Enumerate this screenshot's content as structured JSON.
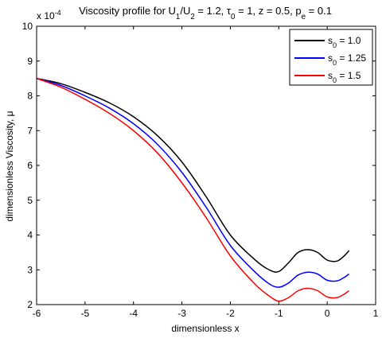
{
  "chart_data": {
    "type": "line",
    "title": {
      "parts": [
        {
          "t": "Viscosity profile for U"
        },
        {
          "t": "1",
          "sub": true
        },
        {
          "t": "/U"
        },
        {
          "t": "2",
          "sub": true
        },
        {
          "t": " = 1.2, τ"
        },
        {
          "t": "0",
          "sub": true
        },
        {
          "t": " = 1, z = 0.5, p"
        },
        {
          "t": "e",
          "sub": true
        },
        {
          "t": " = 0.1"
        }
      ]
    },
    "xlabel": "dimensionless x",
    "ylabel": "dimensionless Viscosity, μ",
    "y_multiplier": "x 10",
    "y_multiplier_exp": "-4",
    "xlim": [
      -6,
      1
    ],
    "ylim": [
      2,
      10
    ],
    "xticks": [
      -6,
      -5,
      -4,
      -3,
      -2,
      -1,
      0,
      1
    ],
    "yticks": [
      2,
      3,
      4,
      5,
      6,
      7,
      8,
      9,
      10
    ],
    "legend_position": "top-right",
    "series": [
      {
        "name": "s0 = 1.0",
        "name_parts": [
          {
            "t": "s"
          },
          {
            "t": "0",
            "sub": true
          },
          {
            "t": " = 1.0"
          }
        ],
        "color": "#000000",
        "points": [
          [
            -6,
            8.5
          ],
          [
            -5.5,
            8.35
          ],
          [
            -5,
            8.1
          ],
          [
            -4.5,
            7.8
          ],
          [
            -4,
            7.4
          ],
          [
            -3.5,
            6.85
          ],
          [
            -3,
            6.1
          ],
          [
            -2.5,
            5.1
          ],
          [
            -2,
            4.0
          ],
          [
            -1.5,
            3.3
          ],
          [
            -1.2,
            3.0
          ],
          [
            -1.0,
            2.95
          ],
          [
            -0.8,
            3.2
          ],
          [
            -0.6,
            3.5
          ],
          [
            -0.4,
            3.58
          ],
          [
            -0.2,
            3.5
          ],
          [
            0,
            3.28
          ],
          [
            0.2,
            3.25
          ],
          [
            0.35,
            3.4
          ],
          [
            0.45,
            3.55
          ]
        ]
      },
      {
        "name": "s0 = 1.25",
        "name_parts": [
          {
            "t": "s"
          },
          {
            "t": "0",
            "sub": true
          },
          {
            "t": " = 1.25"
          }
        ],
        "color": "#0000ff",
        "points": [
          [
            -6,
            8.5
          ],
          [
            -5.5,
            8.3
          ],
          [
            -5,
            8.0
          ],
          [
            -4.5,
            7.65
          ],
          [
            -4,
            7.2
          ],
          [
            -3.5,
            6.6
          ],
          [
            -3,
            5.8
          ],
          [
            -2.5,
            4.8
          ],
          [
            -2,
            3.7
          ],
          [
            -1.5,
            2.95
          ],
          [
            -1.2,
            2.6
          ],
          [
            -1.0,
            2.5
          ],
          [
            -0.8,
            2.62
          ],
          [
            -0.6,
            2.85
          ],
          [
            -0.4,
            2.93
          ],
          [
            -0.2,
            2.88
          ],
          [
            0,
            2.7
          ],
          [
            0.2,
            2.68
          ],
          [
            0.35,
            2.78
          ],
          [
            0.45,
            2.88
          ]
        ]
      },
      {
        "name": "s0 = 1.5",
        "name_parts": [
          {
            "t": "s"
          },
          {
            "t": "0",
            "sub": true
          },
          {
            "t": " = 1.5"
          }
        ],
        "color": "#ff0000",
        "points": [
          [
            -6,
            8.5
          ],
          [
            -5.5,
            8.25
          ],
          [
            -5,
            7.9
          ],
          [
            -4.5,
            7.5
          ],
          [
            -4,
            7.0
          ],
          [
            -3.5,
            6.35
          ],
          [
            -3,
            5.5
          ],
          [
            -2.5,
            4.5
          ],
          [
            -2,
            3.4
          ],
          [
            -1.5,
            2.6
          ],
          [
            -1.2,
            2.25
          ],
          [
            -1.0,
            2.1
          ],
          [
            -0.8,
            2.2
          ],
          [
            -0.6,
            2.4
          ],
          [
            -0.4,
            2.47
          ],
          [
            -0.2,
            2.4
          ],
          [
            0,
            2.22
          ],
          [
            0.2,
            2.2
          ],
          [
            0.35,
            2.3
          ],
          [
            0.45,
            2.4
          ]
        ]
      }
    ]
  }
}
